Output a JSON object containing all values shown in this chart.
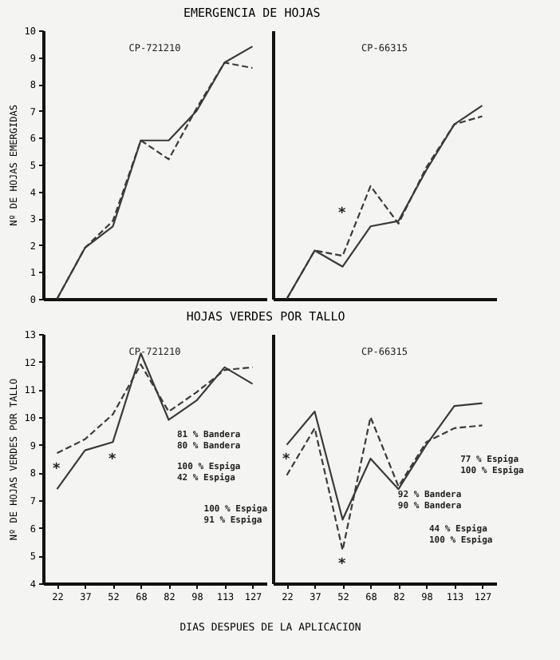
{
  "chart_data": [
    {
      "type": "line",
      "title": "EMERGENCIA DE HOJAS",
      "subtitle": "CP-721210",
      "ylabel": "Nº DE HOJAS EMERGIDAS",
      "categories": [
        "22",
        "37",
        "52",
        "68",
        "82",
        "98",
        "113",
        "127"
      ],
      "ylim": [
        0,
        10
      ],
      "yticks": [
        0,
        1,
        2,
        3,
        4,
        5,
        6,
        7,
        8,
        9,
        10
      ],
      "tick_labels": "y",
      "series": [
        {
          "color": "#3a3a3a",
          "line_style": "solid",
          "values": [
            0,
            1.9,
            2.7,
            5.9,
            5.9,
            7.0,
            8.8,
            9.4
          ]
        },
        {
          "color": "#3a3a3a",
          "line_style": "dashed",
          "values": [
            0,
            1.9,
            2.9,
            5.9,
            5.2,
            7.1,
            8.8,
            8.6
          ]
        }
      ]
    },
    {
      "type": "line",
      "subtitle": "CP-66315",
      "categories": [
        "22",
        "37",
        "52",
        "68",
        "82",
        "98",
        "113",
        "127"
      ],
      "ylim": [
        0,
        10
      ],
      "tick_labels": false,
      "annotations": [
        "*"
      ],
      "series": [
        {
          "color": "#3a3a3a",
          "line_style": "solid",
          "values": [
            0,
            1.8,
            1.2,
            2.7,
            2.9,
            4.8,
            6.5,
            7.2
          ]
        },
        {
          "color": "#3a3a3a",
          "line_style": "dashed",
          "values": [
            0,
            1.8,
            1.6,
            4.2,
            2.8,
            4.9,
            6.5,
            6.8
          ]
        }
      ]
    },
    {
      "type": "line",
      "title": "HOJAS VERDES POR TALLO",
      "subtitle": "CP-721210",
      "xlabel": "DIAS DESPUES DE LA APLICACION",
      "ylabel": "Nº DE HOJAS VERDES POR TALLO",
      "categories": [
        "22",
        "37",
        "52",
        "68",
        "82",
        "98",
        "113",
        "127"
      ],
      "ylim": [
        4,
        13
      ],
      "yticks": [
        4,
        5,
        6,
        7,
        8,
        9,
        10,
        11,
        12,
        13
      ],
      "annotations": [
        "*",
        "*",
        "81 % Bandera",
        "80 % Bandera",
        "100 % Espiga",
        "42 % Espiga",
        "100 % Espiga",
        "91 % Espiga"
      ],
      "series": [
        {
          "color": "#3a3a3a",
          "line_style": "solid",
          "values": [
            7.4,
            8.8,
            9.1,
            12.3,
            9.9,
            10.6,
            11.8,
            11.2
          ]
        },
        {
          "color": "#3a3a3a",
          "line_style": "dashed",
          "values": [
            8.7,
            9.2,
            10.1,
            11.9,
            10.2,
            10.9,
            11.7,
            11.8
          ]
        }
      ]
    },
    {
      "type": "line",
      "subtitle": "CP-66315",
      "categories": [
        "22",
        "37",
        "52",
        "68",
        "82",
        "98",
        "113",
        "127"
      ],
      "ylim": [
        4,
        13
      ],
      "tick_labels": "x",
      "annotations": [
        "*",
        "*",
        "77 % Espiga",
        "100 % Espiga",
        "92 % Bandera",
        "90 % Bandera",
        "44 % Espiga",
        "100 % Espiga"
      ],
      "series": [
        {
          "color": "#3a3a3a",
          "line_style": "solid",
          "values": [
            9.0,
            10.2,
            6.3,
            8.5,
            7.4,
            9.0,
            10.4,
            10.5
          ]
        },
        {
          "color": "#3a3a3a",
          "line_style": "dashed",
          "values": [
            7.9,
            9.6,
            5.2,
            10.0,
            7.5,
            9.1,
            9.6,
            9.7
          ]
        }
      ]
    }
  ]
}
